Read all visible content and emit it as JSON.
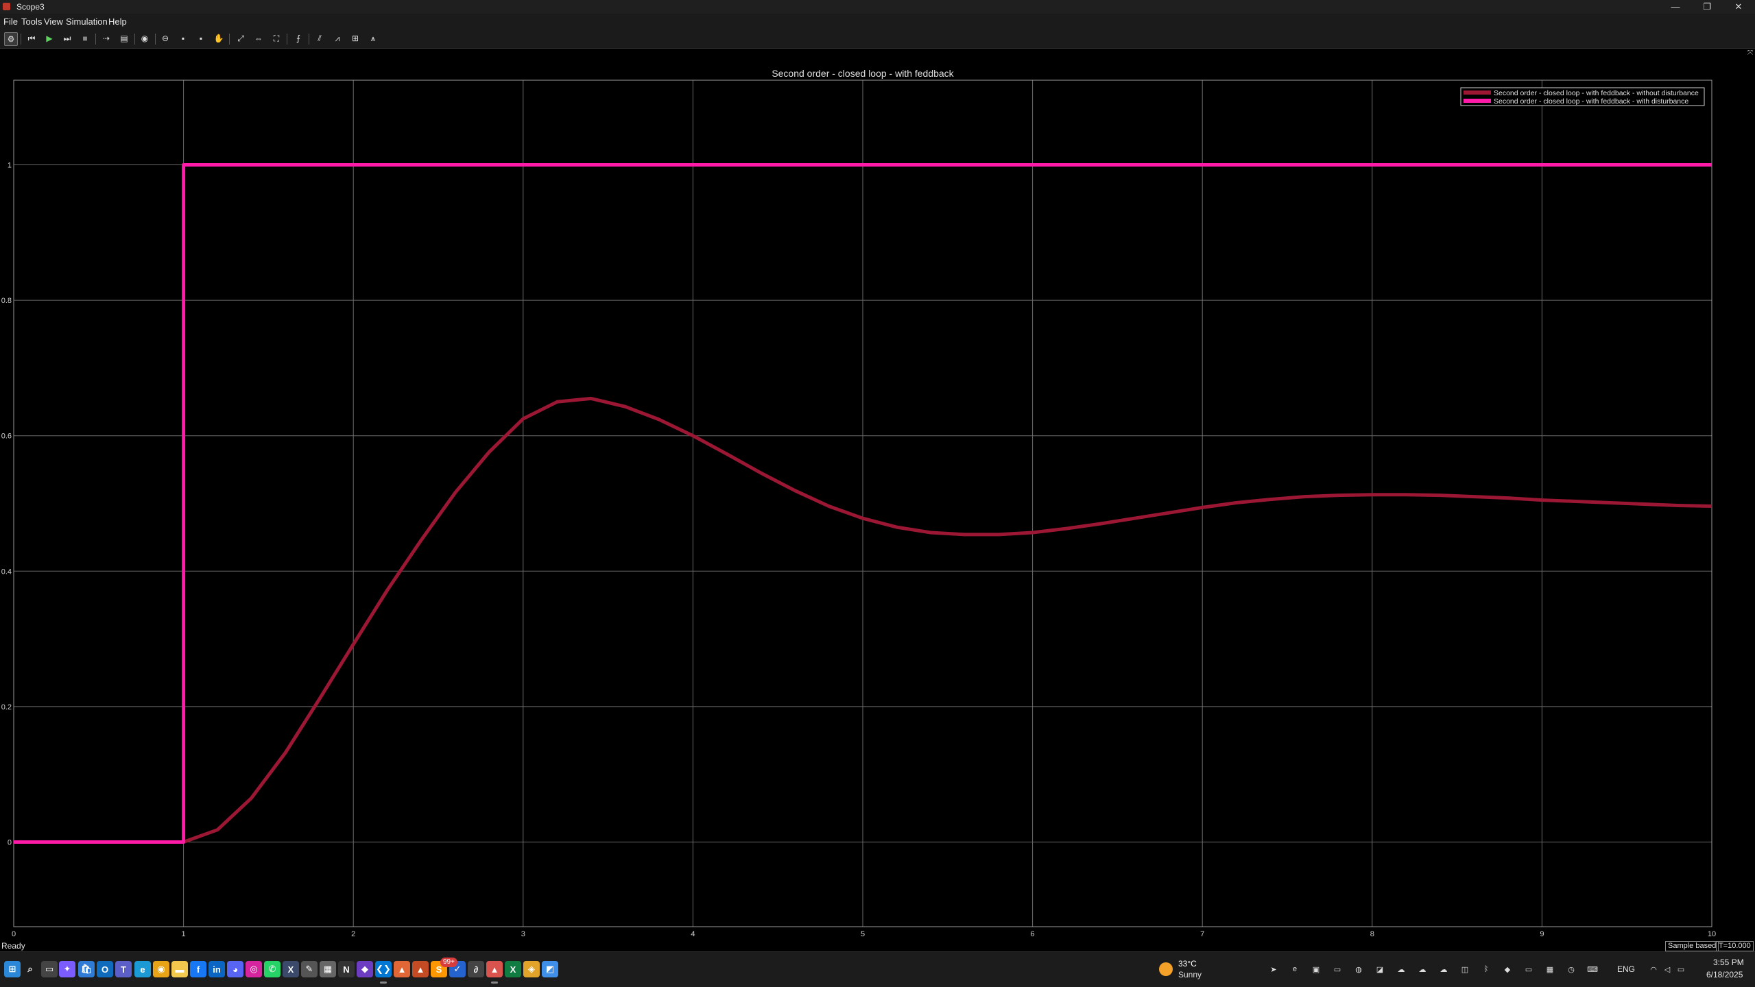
{
  "window": {
    "title": "Scope3",
    "icon": "matlab-scope-icon",
    "controls": [
      {
        "name": "minimize-button",
        "glyph": "—"
      },
      {
        "name": "restore-button",
        "glyph": "❐"
      },
      {
        "name": "close-button",
        "glyph": "✕"
      }
    ]
  },
  "menu": {
    "items": [
      "File",
      "Tools",
      "View",
      "Simulation",
      "Help"
    ]
  },
  "toolbar": {
    "buttons": [
      {
        "name": "settings-icon",
        "glyph": "⚙"
      },
      {
        "name": "step-back-icon",
        "glyph": "⏮"
      },
      {
        "name": "run-icon",
        "glyph": "▶"
      },
      {
        "name": "step-forward-icon",
        "glyph": "⏭"
      },
      {
        "name": "stop-icon",
        "glyph": "■"
      },
      {
        "name": "highlight-block-icon",
        "glyph": "⇢"
      },
      {
        "name": "layout-icon",
        "glyph": "▤"
      },
      {
        "name": "style-icon",
        "glyph": "◉"
      },
      {
        "name": "zoom-in-icon",
        "glyph": "⊖"
      },
      {
        "name": "zoom-x-icon",
        "glyph": "▪"
      },
      {
        "name": "zoom-y-icon",
        "glyph": "▪"
      },
      {
        "name": "pan-icon",
        "glyph": "✋"
      },
      {
        "name": "fit-to-view-icon",
        "glyph": "⤢"
      },
      {
        "name": "scale-x-icon",
        "glyph": "⇔"
      },
      {
        "name": "scale-xy-icon",
        "glyph": "⛶"
      },
      {
        "name": "triggers-icon",
        "glyph": "⨍"
      },
      {
        "name": "cursor-measurements-icon",
        "glyph": "⫽"
      },
      {
        "name": "signal-statistics-icon",
        "glyph": "⩘"
      },
      {
        "name": "bilevel-measurements-icon",
        "glyph": "⊞"
      },
      {
        "name": "peak-finder-icon",
        "glyph": "⩚"
      }
    ]
  },
  "chart_data": {
    "type": "line",
    "title": "Second order - closed loop - with feddback",
    "xlabel": "",
    "ylabel": "",
    "xlim": [
      0,
      10
    ],
    "ylim": [
      -0.125,
      1.125
    ],
    "xticks": [
      0,
      1,
      2,
      3,
      4,
      5,
      6,
      7,
      8,
      9,
      10
    ],
    "yticks": [
      0,
      0.2,
      0.4,
      0.6,
      0.8,
      1
    ],
    "xtick_labels": [
      "0",
      "1",
      "2",
      "3",
      "4",
      "5",
      "6",
      "7",
      "8",
      "9",
      "10"
    ],
    "ytick_labels": [
      "0",
      "0.2",
      "0.4",
      "0.6",
      "0.8",
      "1"
    ],
    "grid": true,
    "legend_position": "top-right",
    "series": [
      {
        "name": "Second order - closed loop - with feddback - without disturbance",
        "color": "#9b1734",
        "x": [
          0,
          1,
          1.2,
          1.4,
          1.6,
          1.8,
          2.0,
          2.2,
          2.4,
          2.6,
          2.8,
          3.0,
          3.2,
          3.4,
          3.6,
          3.8,
          4.0,
          4.2,
          4.4,
          4.6,
          4.8,
          5.0,
          5.2,
          5.4,
          5.6,
          5.8,
          6.0,
          6.2,
          6.4,
          6.6,
          6.8,
          7.0,
          7.2,
          7.4,
          7.6,
          7.8,
          8.0,
          8.2,
          8.4,
          8.6,
          8.8,
          9.0,
          9.2,
          9.4,
          9.6,
          9.8,
          10
        ],
        "y": [
          0,
          0,
          0.018,
          0.065,
          0.132,
          0.211,
          0.292,
          0.372,
          0.446,
          0.516,
          0.576,
          0.625,
          0.65,
          0.655,
          0.643,
          0.624,
          0.6,
          0.573,
          0.545,
          0.519,
          0.496,
          0.478,
          0.465,
          0.457,
          0.454,
          0.454,
          0.457,
          0.463,
          0.47,
          0.478,
          0.486,
          0.494,
          0.501,
          0.506,
          0.51,
          0.512,
          0.513,
          0.513,
          0.512,
          0.51,
          0.508,
          0.505,
          0.503,
          0.501,
          0.499,
          0.497,
          0.496
        ]
      },
      {
        "name": "Second order - closed loop - with feddback - with disturbance",
        "color": "#ff1aa8",
        "x": [
          0,
          1,
          1,
          10
        ],
        "y": [
          0,
          0,
          1,
          1
        ]
      }
    ]
  },
  "status": {
    "text": "Ready",
    "mode": "Sample based",
    "time": "T=10.000"
  },
  "taskbar": {
    "apps": [
      {
        "name": "windows-start-icon",
        "glyph": "⊞",
        "color": "#2b88d8"
      },
      {
        "name": "search-icon",
        "glyph": "⌕",
        "color": "#1c1c1c"
      },
      {
        "name": "task-view-icon",
        "glyph": "▭",
        "color": "#444"
      },
      {
        "name": "copilot-icon",
        "glyph": "✦",
        "color": "#7a5cff"
      },
      {
        "name": "store-icon",
        "glyph": "🛍",
        "color": "#2f7bd6"
      },
      {
        "name": "outlook-icon",
        "glyph": "O",
        "color": "#0f6cbd"
      },
      {
        "name": "teams-icon",
        "glyph": "T",
        "color": "#5b5fc7"
      },
      {
        "name": "edge-icon",
        "glyph": "e",
        "color": "#1c9ad6"
      },
      {
        "name": "chrome-icon",
        "glyph": "◉",
        "color": "#e8a317"
      },
      {
        "name": "file-explorer-icon",
        "glyph": "▬",
        "color": "#f2c94c"
      },
      {
        "name": "facebook-icon",
        "glyph": "f",
        "color": "#1877f2"
      },
      {
        "name": "linkedin-icon",
        "glyph": "in",
        "color": "#0a66c2"
      },
      {
        "name": "discord-icon",
        "glyph": "◕",
        "color": "#5865f2"
      },
      {
        "name": "instagram-icon",
        "glyph": "◎",
        "color": "#d6249f"
      },
      {
        "name": "whatsapp-icon",
        "glyph": "✆",
        "color": "#25d366"
      },
      {
        "name": "x-icon",
        "glyph": "X",
        "color": "#3b4a6b"
      },
      {
        "name": "pen-app-icon",
        "glyph": "✎",
        "color": "#555"
      },
      {
        "name": "media-app-icon",
        "glyph": "▦",
        "color": "#666"
      },
      {
        "name": "notion-icon",
        "glyph": "N",
        "color": "#333"
      },
      {
        "name": "visual-studio-icon",
        "glyph": "◆",
        "color": "#6c3cc1"
      },
      {
        "name": "vscode-icon",
        "glyph": "❮❯",
        "color": "#0078d4"
      },
      {
        "name": "matlab-icon",
        "glyph": "▲",
        "color": "#e16737"
      },
      {
        "name": "matlab-online-icon",
        "glyph": "▲",
        "color": "#c44b23"
      },
      {
        "name": "sublime-icon",
        "glyph": "S",
        "color": "#ff9800"
      },
      {
        "name": "todo-icon",
        "glyph": "✓",
        "color": "#2564cf"
      },
      {
        "name": "quarto-icon",
        "glyph": "∂",
        "color": "#444"
      },
      {
        "name": "matlab-active-icon",
        "glyph": "▲",
        "color": "#d9534f"
      },
      {
        "name": "excel-icon",
        "glyph": "X",
        "color": "#107c41"
      },
      {
        "name": "sourcetree-icon",
        "glyph": "◈",
        "color": "#e2a32a"
      },
      {
        "name": "draw-app-icon",
        "glyph": "◩",
        "color": "#3f8ee8"
      }
    ],
    "whatsapp_badge": "99+",
    "weather": {
      "temp": "33°C",
      "condition": "Sunny"
    },
    "tray_icons": [
      {
        "name": "telegram-icon",
        "glyph": "➤"
      },
      {
        "name": "edge-tray-icon",
        "glyph": "e"
      },
      {
        "name": "store-tray-icon",
        "glyph": "▣"
      },
      {
        "name": "monitor-icon",
        "glyph": "▭"
      },
      {
        "name": "color-picker-icon",
        "glyph": "◍"
      },
      {
        "name": "nvidia-icon",
        "glyph": "◪"
      },
      {
        "name": "onedrive-icon",
        "glyph": "☁"
      },
      {
        "name": "onedrive-alert-icon",
        "glyph": "☁"
      },
      {
        "name": "cloud-sync-icon",
        "glyph": "☁"
      },
      {
        "name": "screen-capture-icon",
        "glyph": "◫"
      },
      {
        "name": "bluetooth-icon",
        "glyph": "ᛒ"
      },
      {
        "name": "security-icon",
        "glyph": "◆"
      },
      {
        "name": "display-icon",
        "glyph": "▭"
      },
      {
        "name": "gpu-icon",
        "glyph": "▦"
      },
      {
        "name": "clock-app-icon",
        "glyph": "◷"
      },
      {
        "name": "keyboard-icon",
        "glyph": "⌨"
      }
    ],
    "language": "ENG",
    "time": "3:55 PM",
    "date": "6/18/2025"
  }
}
